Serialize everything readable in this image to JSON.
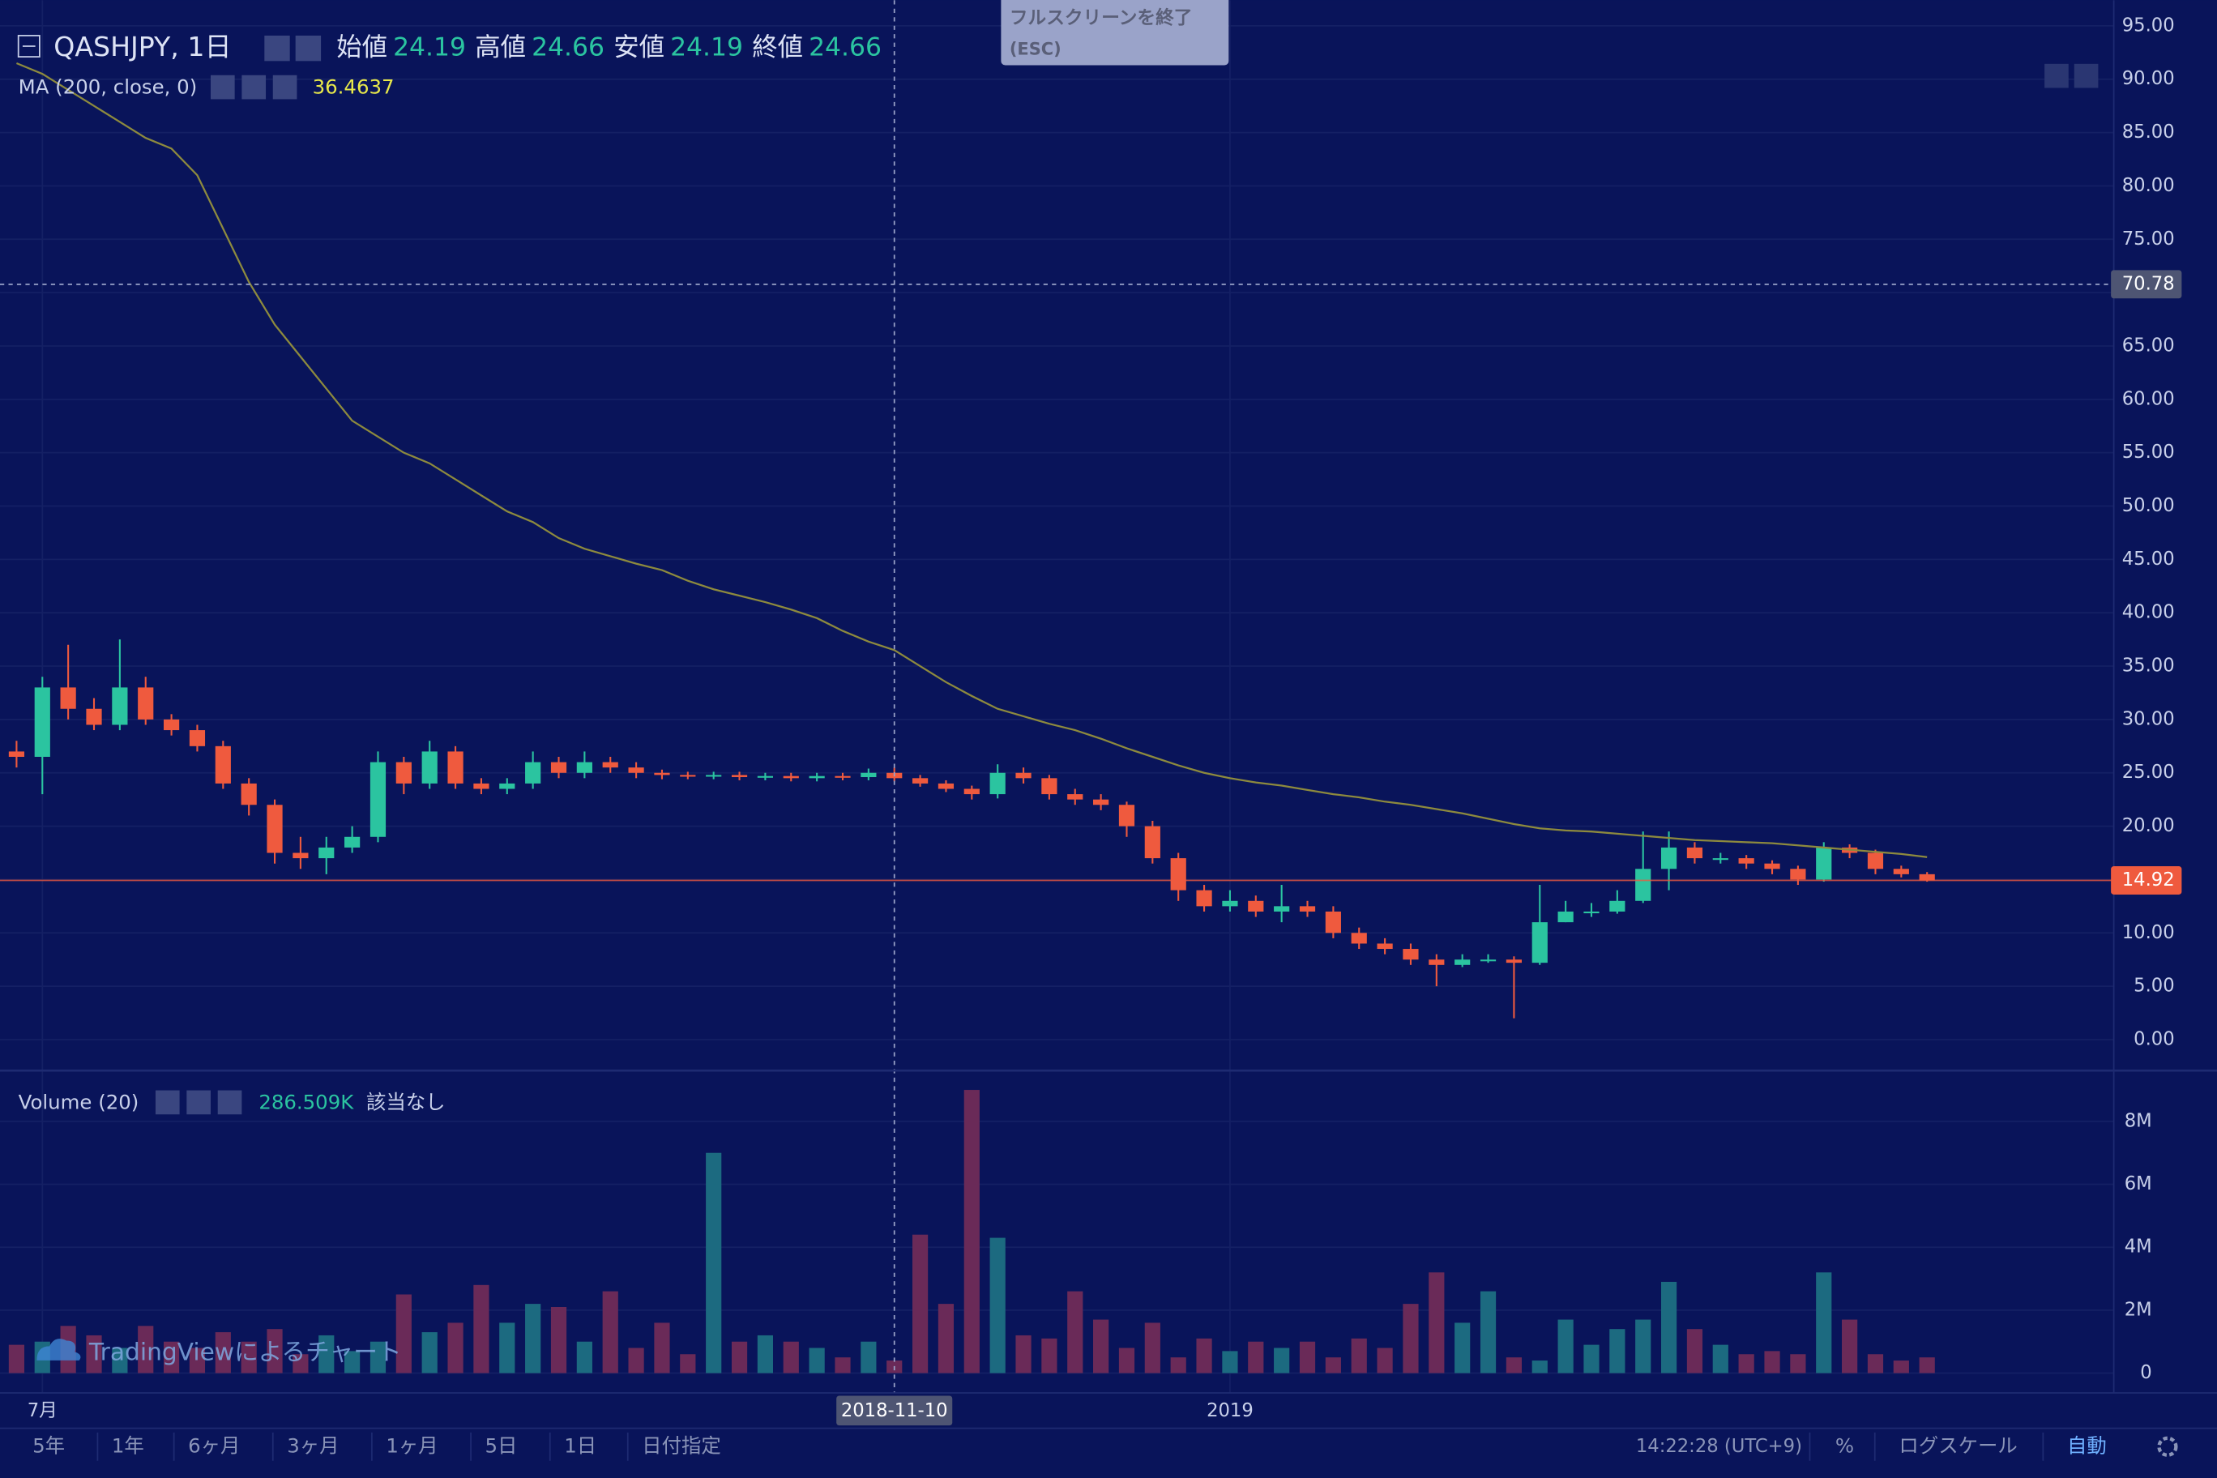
{
  "chart_data": {
    "type": "candlestick",
    "title": "QASHJPY, 1日",
    "legend": [
      {
        "name": "始値",
        "value": 24.19
      },
      {
        "name": "高値",
        "value": 24.66
      },
      {
        "name": "安値",
        "value": 24.19
      },
      {
        "name": "終値",
        "value": 24.66
      }
    ],
    "ylim": [
      -2.9,
      97.4
    ],
    "yticks": [
      {
        "value": 0,
        "label": "0.00"
      },
      {
        "value": 5,
        "label": "5.00"
      },
      {
        "value": 10,
        "label": "10.00"
      },
      {
        "value": 15,
        "label": "15.00"
      },
      {
        "value": 20,
        "label": "20.00"
      },
      {
        "value": 25,
        "label": "25.00"
      },
      {
        "value": 30,
        "label": "30.00"
      },
      {
        "value": 35,
        "label": "35.00"
      },
      {
        "value": 40,
        "label": "40.00"
      },
      {
        "value": 45,
        "label": "45.00"
      },
      {
        "value": 50,
        "label": "50.00"
      },
      {
        "value": 55,
        "label": "55.00"
      },
      {
        "value": 60,
        "label": "60.00"
      },
      {
        "value": 65,
        "label": "65.00"
      },
      {
        "value": 70,
        "label": "70.00"
      },
      {
        "value": 75,
        "label": "75.00"
      },
      {
        "value": 80,
        "label": "80.00"
      },
      {
        "value": 85,
        "label": "85.00"
      },
      {
        "value": 90,
        "label": "90.00"
      },
      {
        "value": 95,
        "label": "95.00"
      }
    ],
    "grid": true,
    "categories": [
      null,
      "7月",
      null,
      null,
      null,
      null,
      null,
      null,
      null,
      null,
      null,
      null,
      null,
      null,
      null,
      null,
      null,
      null,
      null,
      null,
      null,
      null,
      null,
      null,
      null,
      null,
      null,
      null,
      null,
      null,
      null,
      null,
      null,
      null,
      "2018-11-10",
      null,
      null,
      null,
      null,
      null,
      null,
      null,
      null,
      null,
      null,
      null,
      null,
      "2019",
      null,
      null,
      null,
      null,
      null,
      null,
      null,
      null,
      null,
      null,
      null,
      null,
      null,
      null,
      null,
      null,
      null,
      null,
      null,
      null,
      null,
      null,
      null,
      null,
      null,
      null,
      null
    ],
    "open": [
      27,
      26.5,
      33,
      31,
      29.5,
      33,
      30,
      29,
      27.5,
      24,
      22,
      17.5,
      17,
      18,
      19,
      26,
      24,
      27,
      24,
      23.5,
      24,
      26,
      25,
      26,
      25.5,
      25,
      24.8,
      24.7,
      24.8,
      24.6,
      24.7,
      24.5,
      24.7,
      24.6,
      25,
      24.5,
      24,
      23.5,
      23,
      25,
      24.5,
      23,
      22.5,
      22,
      20,
      17,
      14,
      12.5,
      13,
      12,
      12.5,
      12,
      10,
      9,
      8.5,
      7.5,
      7,
      7.5,
      7.5,
      7.2,
      11,
      12,
      12,
      13,
      16,
      18,
      17,
      17,
      16.5,
      16,
      15,
      18,
      17.5,
      16,
      15.5
    ],
    "high": [
      28,
      34,
      37,
      32,
      37.5,
      34,
      30.5,
      29.5,
      28,
      24.5,
      22.5,
      19,
      19,
      20,
      27,
      26.5,
      28,
      27.5,
      24.5,
      24.5,
      27,
      26.5,
      27,
      26.5,
      26,
      25.3,
      25.1,
      25.1,
      25.1,
      25,
      25,
      25,
      25,
      25.4,
      25.5,
      24.8,
      24.3,
      23.8,
      25.8,
      25.5,
      24.8,
      23.5,
      23,
      22.3,
      20.5,
      17.5,
      14.5,
      14,
      13.5,
      14.5,
      13,
      12.5,
      10.5,
      9.5,
      9,
      8,
      8,
      8,
      7.8,
      14.5,
      13,
      12.8,
      14,
      19.5,
      19.5,
      18.5,
      17.5,
      17.3,
      16.8,
      16.3,
      18.5,
      18.3,
      17.8,
      16.3,
      15.7
    ],
    "low": [
      25.5,
      23,
      30,
      29,
      29,
      29.5,
      28.5,
      27,
      23.5,
      21,
      16.5,
      16,
      15.5,
      17.5,
      18.5,
      23,
      23.5,
      23.5,
      23,
      23,
      23.5,
      24.5,
      24.5,
      25,
      24.5,
      24.4,
      24.4,
      24.4,
      24.3,
      24.3,
      24.2,
      24.2,
      24.3,
      24.3,
      24.2,
      23.7,
      23.2,
      22.5,
      22.6,
      24,
      22.5,
      22,
      21.5,
      19,
      16.5,
      13,
      12,
      12,
      11.5,
      11,
      11.5,
      9.5,
      8.5,
      8,
      7,
      5,
      6.8,
      7.2,
      2,
      7,
      11,
      11.5,
      11.8,
      12.8,
      14,
      16.5,
      16.5,
      16,
      15.5,
      14.5,
      14.8,
      17,
      15.5,
      15.2,
      14.8
    ],
    "close": [
      26.5,
      33,
      31,
      29.5,
      33,
      30,
      29,
      27.5,
      24,
      22,
      17.5,
      17,
      18,
      19,
      26,
      24,
      27,
      24,
      23.5,
      24,
      26,
      25,
      26,
      25.5,
      25,
      24.8,
      24.7,
      24.8,
      24.6,
      24.7,
      24.5,
      24.7,
      24.6,
      25,
      24.5,
      24,
      23.5,
      23,
      25,
      24.5,
      23,
      22.5,
      22,
      20,
      17,
      14,
      12.5,
      13,
      12,
      12.5,
      12,
      10,
      9,
      8.5,
      7.5,
      7,
      7.5,
      7.5,
      7.2,
      11,
      12,
      12,
      13,
      16,
      18,
      17,
      17,
      16.5,
      16,
      15,
      18,
      17.5,
      16,
      15.5,
      14.92
    ],
    "up_color": "#2bc4a0",
    "down_color": "#ef5a3e",
    "ma": {
      "name": "MA (200, close, 0)",
      "value": 36.4637,
      "color": "#8d8a3e",
      "values": [
        91.5,
        90.5,
        89,
        87.5,
        86,
        84.5,
        83.5,
        81,
        76,
        71,
        67,
        64,
        61,
        58,
        56.5,
        55,
        54,
        52.5,
        51,
        49.5,
        48.5,
        47,
        46,
        45.3,
        44.6,
        44,
        43,
        42.2,
        41.6,
        41,
        40.3,
        39.5,
        38.3,
        37.3,
        36.5,
        35,
        33.5,
        32.2,
        31,
        30.3,
        29.6,
        29,
        28.2,
        27.3,
        26.5,
        25.7,
        25,
        24.5,
        24.1,
        23.8,
        23.4,
        23,
        22.7,
        22.3,
        22,
        21.6,
        21.2,
        20.7,
        20.2,
        19.8,
        19.6,
        19.5,
        19.3,
        19.1,
        18.9,
        18.7,
        18.6,
        18.5,
        18.4,
        18.2,
        18,
        17.8,
        17.6,
        17.4,
        17.1
      ]
    },
    "volume": {
      "name": "Volume (20)",
      "value": 286509,
      "value_label": "286.509K",
      "status": "該当なし",
      "ylim": [
        -630000,
        9480000
      ],
      "yticks": [
        0,
        {
          "value": 2000000,
          "label": "2M"
        },
        {
          "value": 4000000,
          "label": "4M"
        },
        {
          "value": 6000000,
          "label": "6M"
        },
        {
          "value": 8000000,
          "label": "8M"
        }
      ],
      "up_color": "#1c6a80",
      "down_color": "#6a2a58",
      "values": [
        900000,
        1000000,
        1500000,
        1200000,
        800000,
        1500000,
        1000000,
        800000,
        1300000,
        1000000,
        1400000,
        600000,
        1200000,
        700000,
        1000000,
        2500000,
        1300000,
        1600000,
        2800000,
        1600000,
        2200000,
        2100000,
        1000000,
        2600000,
        800000,
        1600000,
        600000,
        7000000,
        1000000,
        1200000,
        1000000,
        800000,
        500000,
        1000000,
        400000,
        4400000,
        2200000,
        9000000,
        4300000,
        1200000,
        1100000,
        2600000,
        1700000,
        800000,
        1600000,
        500000,
        1100000,
        700000,
        1000000,
        800000,
        1000000,
        500000,
        1100000,
        800000,
        2200000,
        3200000,
        1600000,
        2600000,
        500000,
        400000,
        1700000,
        900000,
        1400000,
        1700000,
        2900000,
        1400000,
        900000,
        600000,
        700000,
        600000,
        3200000,
        1700000,
        600000,
        400000,
        500000
      ]
    },
    "price_line": {
      "value": 14.92,
      "color": "#ef5a3e"
    },
    "crosshair": {
      "x": "2018-11-10",
      "y": 70.78
    }
  },
  "toolbar": {
    "ranges": [
      "5年",
      "1年",
      "6ヶ月",
      "3ヶ月",
      "1ヶ月",
      "5日",
      "1日",
      "日付指定"
    ],
    "time": "14:22:28 (UTC+9)",
    "percent": "%",
    "log_scale": "ログスケール",
    "auto": "自動"
  },
  "overlay": {
    "exit_fullscreen": "フルスクリーンを終了",
    "esc": "(ESC)",
    "watermark": "TradingViewによるチャート"
  }
}
